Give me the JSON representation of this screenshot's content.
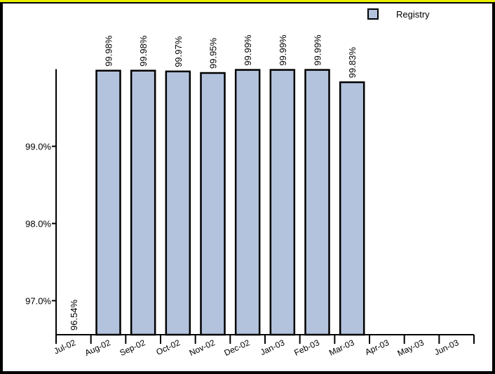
{
  "chart_data": {
    "type": "bar",
    "categories": [
      "Jul-02",
      "Aug-02",
      "Sep-02",
      "Oct-02",
      "Nov-02",
      "Dec-02",
      "Jan-03",
      "Feb-03",
      "Mar-03",
      "Apr-03",
      "May-03",
      "Jun-03"
    ],
    "series": [
      {
        "name": "Registry",
        "values": [
          96.54,
          99.98,
          99.98,
          99.97,
          99.95,
          99.99,
          99.99,
          99.99,
          99.83,
          null,
          null,
          null
        ],
        "data_labels": [
          "96.54%",
          "99.98%",
          "99.98%",
          "99.97%",
          "99.95%",
          "99.99%",
          "99.99%",
          "99.99%",
          "99.83%",
          "",
          "",
          ""
        ]
      }
    ],
    "y_ticks": [
      {
        "value": 99.0,
        "label": "99.0%"
      },
      {
        "value": 98.0,
        "label": "98.0%"
      },
      {
        "value": 97.0,
        "label": "97.0%"
      }
    ],
    "ylim": [
      96.54,
      100.0
    ],
    "title": "",
    "xlabel": "",
    "ylabel": "",
    "grid": false,
    "legend": {
      "position": "top-right",
      "entries": [
        "Registry"
      ]
    },
    "colors": {
      "bar_fill": "#b3c3dd",
      "bar_stroke": "#000000",
      "page_border": "#e8f000",
      "background": "#ffffff",
      "frame": "#000000"
    }
  }
}
